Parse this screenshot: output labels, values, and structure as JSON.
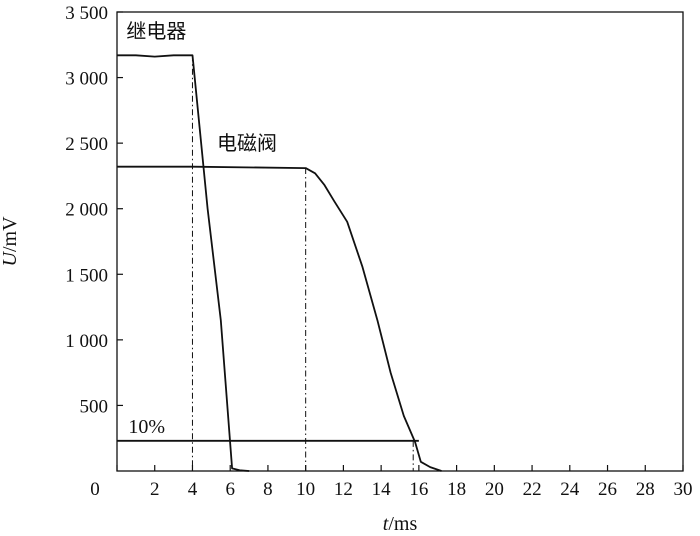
{
  "chart_data": {
    "type": "line",
    "xlabel_var": "t",
    "xlabel_unit": "/ms",
    "ylabel_var": "U",
    "ylabel_unit": "/mV",
    "xlim": [
      0,
      30
    ],
    "ylim": [
      0,
      3500
    ],
    "x_ticks": [
      0,
      2,
      4,
      6,
      8,
      10,
      12,
      14,
      16,
      18,
      20,
      22,
      24,
      26,
      28,
      30
    ],
    "y_ticks": [
      500,
      1000,
      1500,
      2000,
      2500,
      3000,
      3500
    ],
    "y_tick_labels": [
      "500",
      "1 000",
      "1 500",
      "2 000",
      "2 500",
      "3 000",
      "3 500"
    ],
    "grid": false,
    "series": [
      {
        "name": "继电器",
        "x": [
          0,
          1,
          2,
          3,
          4,
          4.8,
          5.5,
          6.1,
          6.5,
          7.0
        ],
        "y": [
          3170,
          3170,
          3160,
          3170,
          3170,
          2000,
          1150,
          20,
          5,
          0
        ]
      },
      {
        "name": "电磁阀",
        "x": [
          0,
          4,
          10,
          10.5,
          11,
          11.5,
          12.2,
          13,
          13.8,
          14.5,
          15.2,
          15.8,
          16.1,
          16.6,
          17.2
        ],
        "y": [
          2320,
          2320,
          2310,
          2270,
          2180,
          2060,
          1900,
          1560,
          1150,
          750,
          420,
          220,
          70,
          30,
          0
        ]
      }
    ],
    "annotations": [
      {
        "label": "10%",
        "y": 230,
        "x_range": [
          0,
          16
        ]
      }
    ],
    "dashdot_markers": [
      {
        "x": 4,
        "y_top": 3170
      },
      {
        "x": 10,
        "y_top": 2310
      },
      {
        "x": 15.7,
        "y_top": 230
      }
    ]
  }
}
